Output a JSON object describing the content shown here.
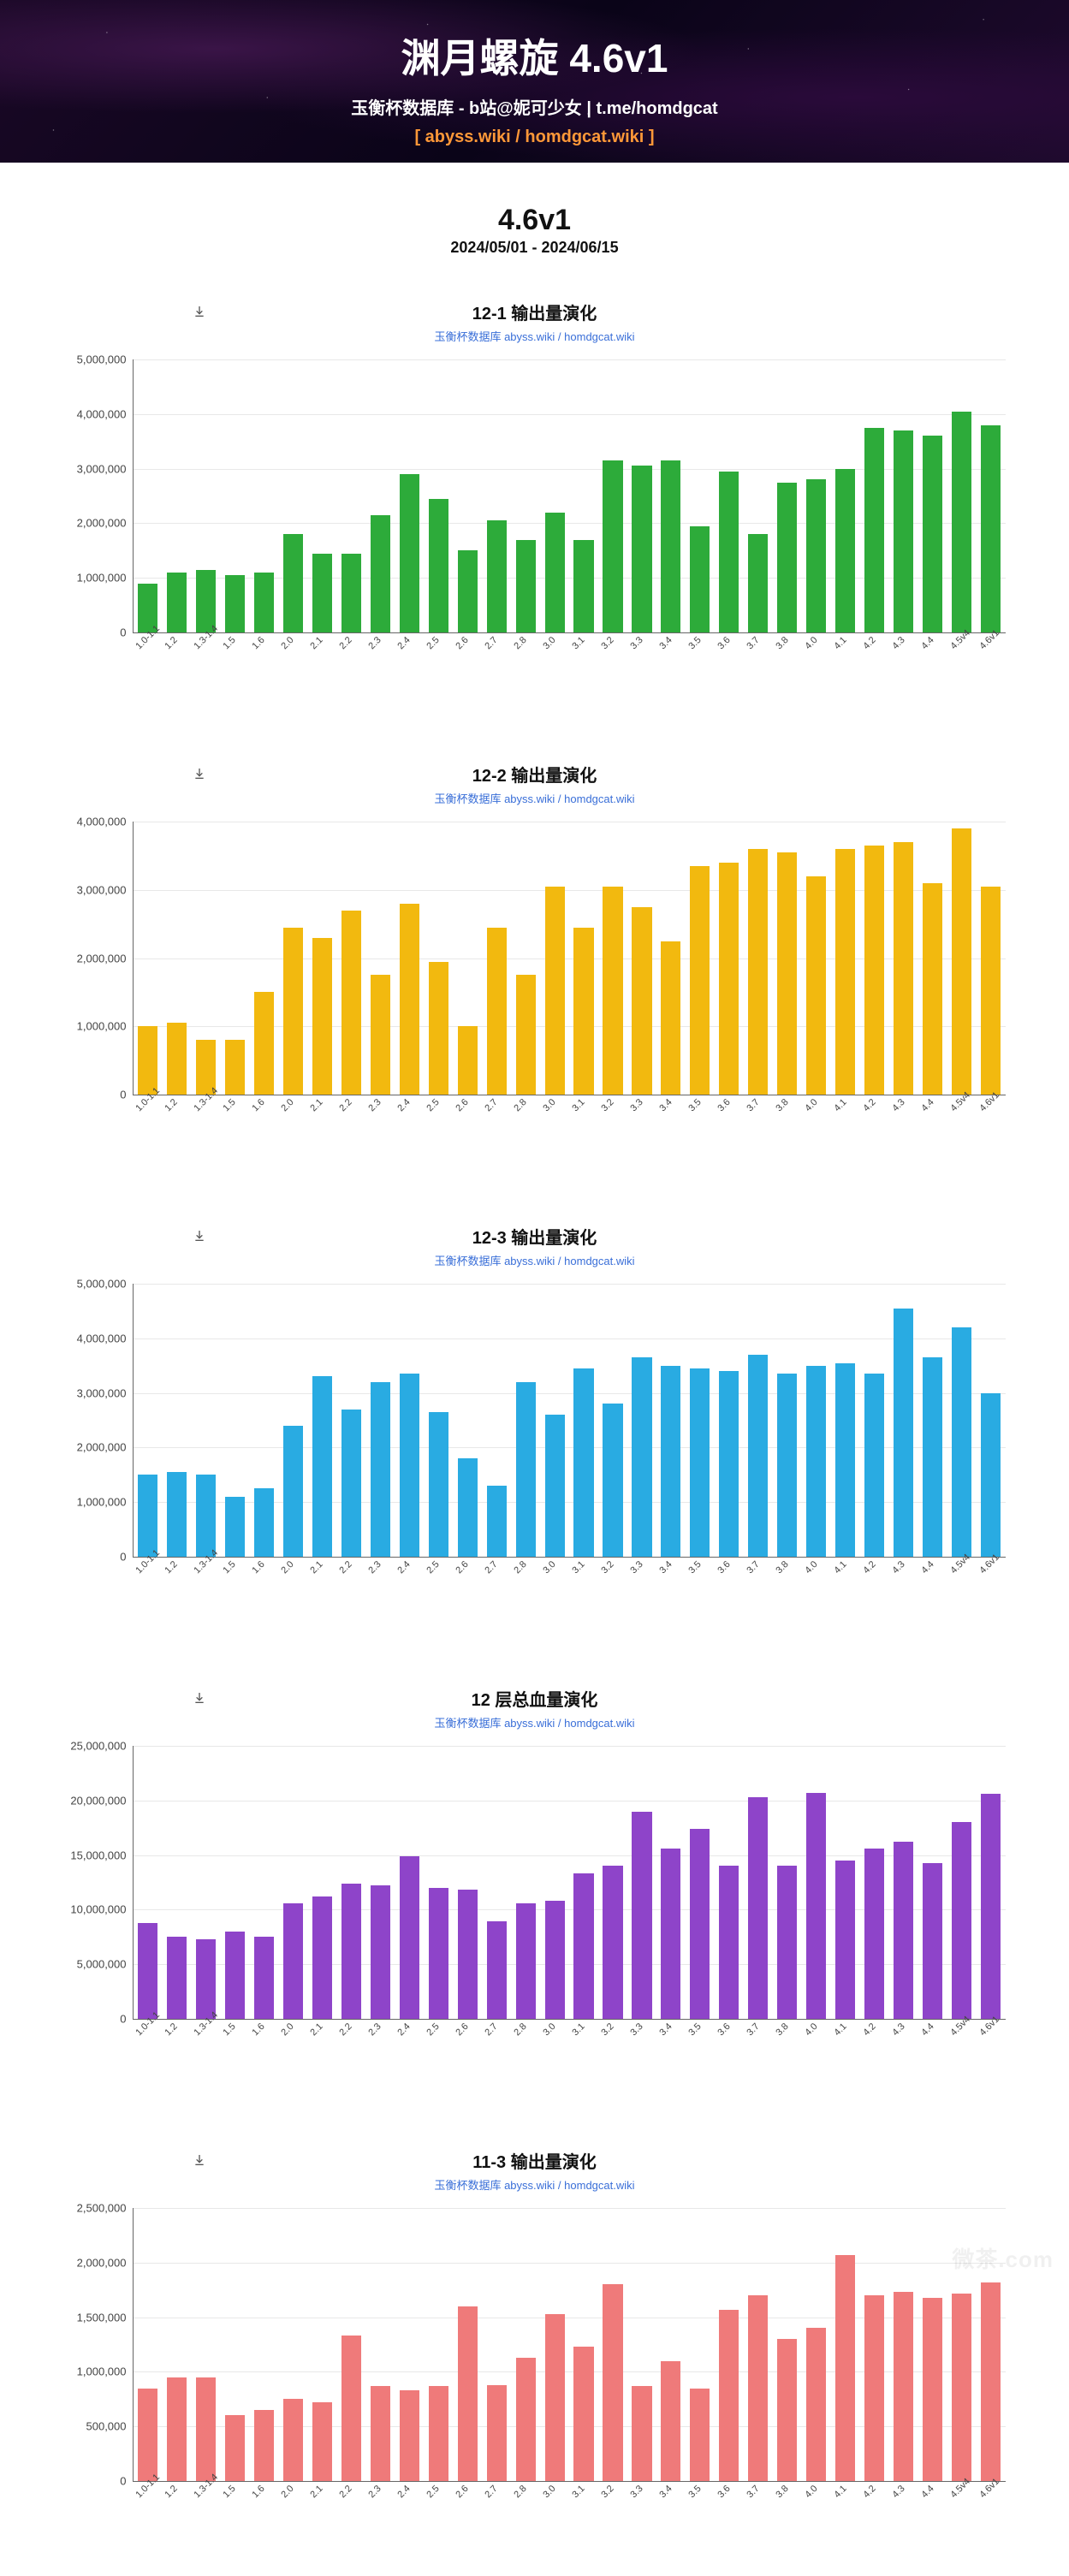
{
  "header": {
    "title_prefix": "渊月螺旋 ",
    "title_version": "4.6v1",
    "subtitle": "玉衡杯数据库 - b站@妮可少女 | t.me/homdgcat",
    "links": "[ abyss.wiki / homdgcat.wiki ]"
  },
  "version_block": {
    "version": "4.6v1",
    "dates": "2024/05/01 - 2024/06/15"
  },
  "shared": {
    "subtitle": "玉衡杯数据库 abyss.wiki / homdgcat.wiki",
    "subtitle_color": "#3a6fd8",
    "title_fontsize": 20,
    "subtitle_fontsize": 13,
    "axis_color": "#666666",
    "grid_color": "#e8e8e8",
    "label_color": "#444444",
    "background_color": "#ffffff",
    "bar_width_ratio": 0.68,
    "categories": [
      "1.0-1.1",
      "1.2",
      "1.3-1.4",
      "1.5",
      "1.6",
      "2.0",
      "2.1",
      "2.2",
      "2.3",
      "2.4",
      "2.5",
      "2.6",
      "2.7",
      "2.8",
      "3.0",
      "3.1",
      "3.2",
      "3.3",
      "3.4",
      "3.5",
      "3.6",
      "3.7",
      "3.8",
      "4.0",
      "4.1",
      "4.2",
      "4.3",
      "4.4",
      "4.5v4",
      "4.6v1"
    ],
    "watermark": "微茶.com"
  },
  "charts": [
    {
      "id": "c1",
      "title": "12-1 输出量演化",
      "type": "bar",
      "bar_color": "#2dab3a",
      "ymax": 5000000,
      "ytick_step": 1000000,
      "values": [
        900000,
        1100000,
        1150000,
        1050000,
        1100000,
        1800000,
        1450000,
        1450000,
        2150000,
        2900000,
        2450000,
        1500000,
        2050000,
        1700000,
        2200000,
        1700000,
        3150000,
        3050000,
        3150000,
        1950000,
        2950000,
        1800000,
        2750000,
        2800000,
        3000000,
        3750000,
        3700000,
        3600000,
        4050000,
        3800000
      ]
    },
    {
      "id": "c2",
      "title": "12-2 输出量演化",
      "type": "bar",
      "bar_color": "#f2b90f",
      "ymax": 4000000,
      "ytick_step": 1000000,
      "values": [
        1000000,
        1050000,
        800000,
        800000,
        1500000,
        2450000,
        2300000,
        2700000,
        1750000,
        2800000,
        1950000,
        1000000,
        2450000,
        1750000,
        3050000,
        2450000,
        3050000,
        2750000,
        2250000,
        3350000,
        3400000,
        3600000,
        3550000,
        3200000,
        3600000,
        3650000,
        3700000,
        3100000,
        3900000,
        3050000
      ]
    },
    {
      "id": "c3",
      "title": "12-3 输出量演化",
      "type": "bar",
      "bar_color": "#29abe2",
      "ymax": 5000000,
      "ytick_step": 1000000,
      "values": [
        1500000,
        1550000,
        1500000,
        1100000,
        1250000,
        2400000,
        3300000,
        2700000,
        3200000,
        3350000,
        2650000,
        1800000,
        1300000,
        3200000,
        2600000,
        3450000,
        2800000,
        3650000,
        3500000,
        3450000,
        3400000,
        3700000,
        3350000,
        3500000,
        3550000,
        3350000,
        4550000,
        3650000,
        4200000,
        3000000
      ]
    },
    {
      "id": "c4",
      "title": "12 层总血量演化",
      "type": "bar",
      "bar_color": "#8e44c9",
      "ymax": 25000000,
      "ytick_step": 5000000,
      "values": [
        8800000,
        7500000,
        7300000,
        8000000,
        7500000,
        10600000,
        11200000,
        12400000,
        12200000,
        14900000,
        12000000,
        11800000,
        8900000,
        10600000,
        10800000,
        13300000,
        14000000,
        19000000,
        15600000,
        17400000,
        14000000,
        20300000,
        14000000,
        20700000,
        14500000,
        15600000,
        16200000,
        14300000,
        18000000,
        20600000
      ]
    },
    {
      "id": "c5",
      "title": "11-3 输出量演化",
      "type": "bar",
      "bar_color": "#ef7a7a",
      "ymax": 2500000,
      "ytick_step": 500000,
      "values": [
        850000,
        950000,
        950000,
        600000,
        650000,
        750000,
        720000,
        1330000,
        870000,
        830000,
        870000,
        1600000,
        880000,
        1130000,
        1530000,
        1230000,
        1800000,
        870000,
        1100000,
        850000,
        1570000,
        1700000,
        1300000,
        1400000,
        2070000,
        1700000,
        1730000,
        1680000,
        1720000,
        1820000
      ]
    }
  ]
}
